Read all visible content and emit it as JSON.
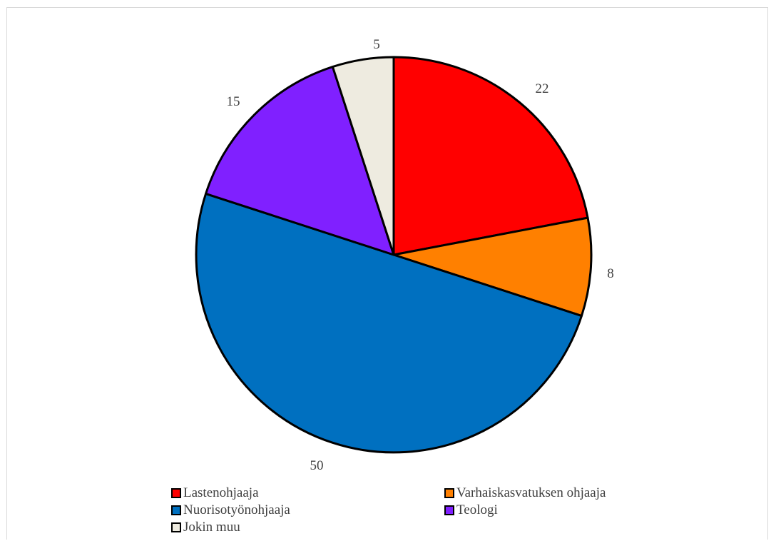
{
  "chart_data": {
    "type": "pie",
    "title": "",
    "start_angle_deg": 0,
    "direction": "clockwise",
    "legend_position": "bottom",
    "slice_border_color": "#000000",
    "slices": [
      {
        "label": "Lastenohjaaja",
        "value": 22,
        "value_label": "22",
        "color": "#ff0000"
      },
      {
        "label": "Varhaiskasvatuksen ohjaaja",
        "value": 8,
        "value_label": "8",
        "color": "#ff8000"
      },
      {
        "label": "Nuorisotyönohjaaja",
        "value": 50,
        "value_label": "50",
        "color": "#0070c0"
      },
      {
        "label": "Teologi",
        "value": 15,
        "value_label": "15",
        "color": "#8020ff"
      },
      {
        "label": "Jokin muu",
        "value": 5,
        "value_label": "5",
        "color": "#eeebe0"
      }
    ]
  }
}
